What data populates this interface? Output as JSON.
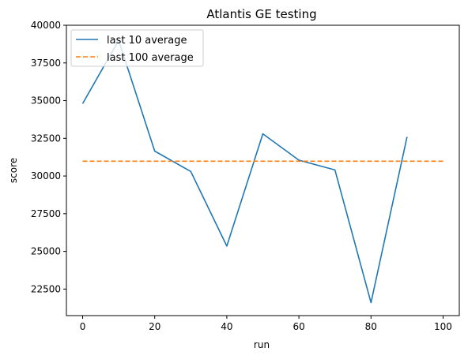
{
  "chart_data": {
    "type": "line",
    "title": "Atlantis GE testing",
    "xlabel": "run",
    "ylabel": "score",
    "xlim": [
      -4.5,
      104.5
    ],
    "ylim": [
      20740,
      40000
    ],
    "xticks": [
      0,
      20,
      40,
      60,
      80,
      100
    ],
    "yticks": [
      22500,
      25000,
      27500,
      30000,
      32500,
      35000,
      37500,
      40000
    ],
    "grid": false,
    "legend_position": "top-left",
    "series": [
      {
        "name": "last 10 average",
        "style": "solid",
        "color": "#1f77b4",
        "x": [
          0,
          10,
          20,
          30,
          40,
          50,
          60,
          70,
          80,
          90
        ],
        "values": [
          34800,
          39000,
          31650,
          30300,
          25350,
          32800,
          31050,
          30400,
          21600,
          32600
        ]
      },
      {
        "name": "last 100 average",
        "style": "dashed",
        "color": "#ff7f0e",
        "x": [
          0,
          100
        ],
        "values": [
          30980,
          30980
        ]
      }
    ]
  }
}
